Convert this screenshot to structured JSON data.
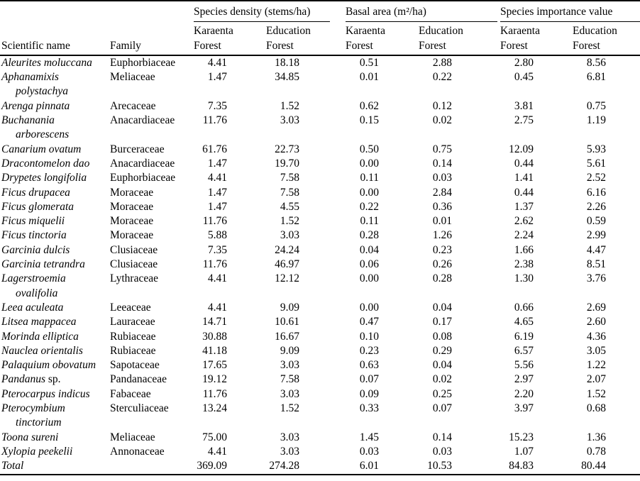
{
  "page": {
    "background": "#ffffff",
    "text_color": "#000000",
    "rule_color": "#000000"
  },
  "table": {
    "groups": [
      {
        "label": "Species density (stems/ha)"
      },
      {
        "label": "Basal area (m²/ha)"
      },
      {
        "label": "Species importance value"
      }
    ],
    "col_headers": {
      "scientific_name": "Scientific name",
      "family": "Family",
      "karaenta": "Karaenta\nForest",
      "education": "Education\nForest"
    },
    "rows": [
      {
        "name_lines": [
          "Aleurites moluccana"
        ],
        "family": "Euphorbiaceae",
        "values": [
          "4.41",
          "18.18",
          "0.51",
          "2.88",
          "2.80",
          "8.56"
        ]
      },
      {
        "name_lines": [
          "Aphanamixis",
          "polystachya"
        ],
        "family": "Meliaceae",
        "values": [
          "1.47",
          "34.85",
          "0.01",
          "0.22",
          "0.45",
          "6.81"
        ]
      },
      {
        "name_lines": [
          "Arenga pinnata"
        ],
        "family": "Arecaceae",
        "values": [
          "7.35",
          "1.52",
          "0.62",
          "0.12",
          "3.81",
          "0.75"
        ]
      },
      {
        "name_lines": [
          "Buchanania",
          "arborescens"
        ],
        "family": "Anacardiaceae",
        "values": [
          "11.76",
          "3.03",
          "0.15",
          "0.02",
          "2.75",
          "1.19"
        ]
      },
      {
        "name_lines": [
          "Canarium ovatum"
        ],
        "family": "Burceraceae",
        "values": [
          "61.76",
          "22.73",
          "0.50",
          "0.75",
          "12.09",
          "5.93"
        ]
      },
      {
        "name_lines": [
          "Dracontomelon dao"
        ],
        "family": "Anacardiaceae",
        "values": [
          "1.47",
          "19.70",
          "0.00",
          "0.14",
          "0.44",
          "5.61"
        ]
      },
      {
        "name_lines": [
          "Drypetes longifolia"
        ],
        "family": "Euphorbiaceae",
        "values": [
          "4.41",
          "7.58",
          "0.11",
          "0.03",
          "1.41",
          "2.52"
        ]
      },
      {
        "name_lines": [
          "Ficus drupacea"
        ],
        "family": "Moraceae",
        "values": [
          "1.47",
          "7.58",
          "0.00",
          "2.84",
          "0.44",
          "6.16"
        ]
      },
      {
        "name_lines": [
          "Ficus glomerata"
        ],
        "family": "Moraceae",
        "values": [
          "1.47",
          "4.55",
          "0.22",
          "0.36",
          "1.37",
          "2.26"
        ]
      },
      {
        "name_lines": [
          "Ficus miquelii"
        ],
        "family": "Moraceae",
        "values": [
          "11.76",
          "1.52",
          "0.11",
          "0.01",
          "2.62",
          "0.59"
        ]
      },
      {
        "name_lines": [
          "Ficus tinctoria"
        ],
        "family": "Moraceae",
        "values": [
          "5.88",
          "3.03",
          "0.28",
          "1.26",
          "2.24",
          "2.99"
        ]
      },
      {
        "name_lines": [
          "Garcinia dulcis"
        ],
        "family": "Clusiaceae",
        "values": [
          "7.35",
          "24.24",
          "0.04",
          "0.23",
          "1.66",
          "4.47"
        ]
      },
      {
        "name_lines": [
          "Garcinia tetrandra"
        ],
        "family": "Clusiaceae",
        "values": [
          "11.76",
          "46.97",
          "0.06",
          "0.26",
          "2.38",
          "8.51"
        ]
      },
      {
        "name_lines": [
          "Lagerstroemia",
          "ovalifolia"
        ],
        "family": "Lythraceae",
        "values": [
          "4.41",
          "12.12",
          "0.00",
          "0.28",
          "1.30",
          "3.76"
        ]
      },
      {
        "name_lines": [
          "Leea aculeata"
        ],
        "family": "Leeaceae",
        "values": [
          "4.41",
          "9.09",
          "0.00",
          "0.04",
          "0.66",
          "2.69"
        ]
      },
      {
        "name_lines": [
          "Litsea mappacea"
        ],
        "family": "Lauraceae",
        "values": [
          "14.71",
          "10.61",
          "0.47",
          "0.17",
          "4.65",
          "2.60"
        ]
      },
      {
        "name_lines": [
          "Morinda elliptica"
        ],
        "family": "Rubiaceae",
        "values": [
          "30.88",
          "16.67",
          "0.10",
          "0.08",
          "6.19",
          "4.36"
        ]
      },
      {
        "name_lines": [
          "Nauclea orientalis"
        ],
        "family": "Rubiaceae",
        "values": [
          "41.18",
          "9.09",
          "0.23",
          "0.29",
          "6.57",
          "3.05"
        ]
      },
      {
        "name_lines": [
          "Palaquium obovatum"
        ],
        "family": "Sapotaceae",
        "values": [
          "17.65",
          "3.03",
          "0.63",
          "0.04",
          "5.56",
          "1.22"
        ]
      },
      {
        "name_lines": [
          "Pandanus"
        ],
        "name_suffix": "sp.",
        "family": "Pandanaceae",
        "values": [
          "19.12",
          "7.58",
          "0.07",
          "0.02",
          "2.97",
          "2.07"
        ]
      },
      {
        "name_lines": [
          "Pterocarpus indicus"
        ],
        "family": "Fabaceae",
        "values": [
          "11.76",
          "3.03",
          "0.09",
          "0.25",
          "2.20",
          "1.52"
        ]
      },
      {
        "name_lines": [
          "Pterocymbium",
          "tinctorium"
        ],
        "family": "Sterculiaceae",
        "values": [
          "13.24",
          "1.52",
          "0.33",
          "0.07",
          "3.97",
          "0.68"
        ]
      },
      {
        "name_lines": [
          "Toona sureni"
        ],
        "family": "Meliaceae",
        "values": [
          "75.00",
          "3.03",
          "1.45",
          "0.14",
          "15.23",
          "1.36"
        ]
      },
      {
        "name_lines": [
          "Xylopia peekelii"
        ],
        "family": "Annonaceae",
        "values": [
          "4.41",
          "3.03",
          "0.03",
          "0.03",
          "1.07",
          "0.78"
        ]
      },
      {
        "name_lines": [
          "Total"
        ],
        "family": "",
        "values": [
          "369.09",
          "274.28",
          "6.01",
          "10.53",
          "84.83",
          "80.44"
        ],
        "is_total": true
      }
    ]
  }
}
